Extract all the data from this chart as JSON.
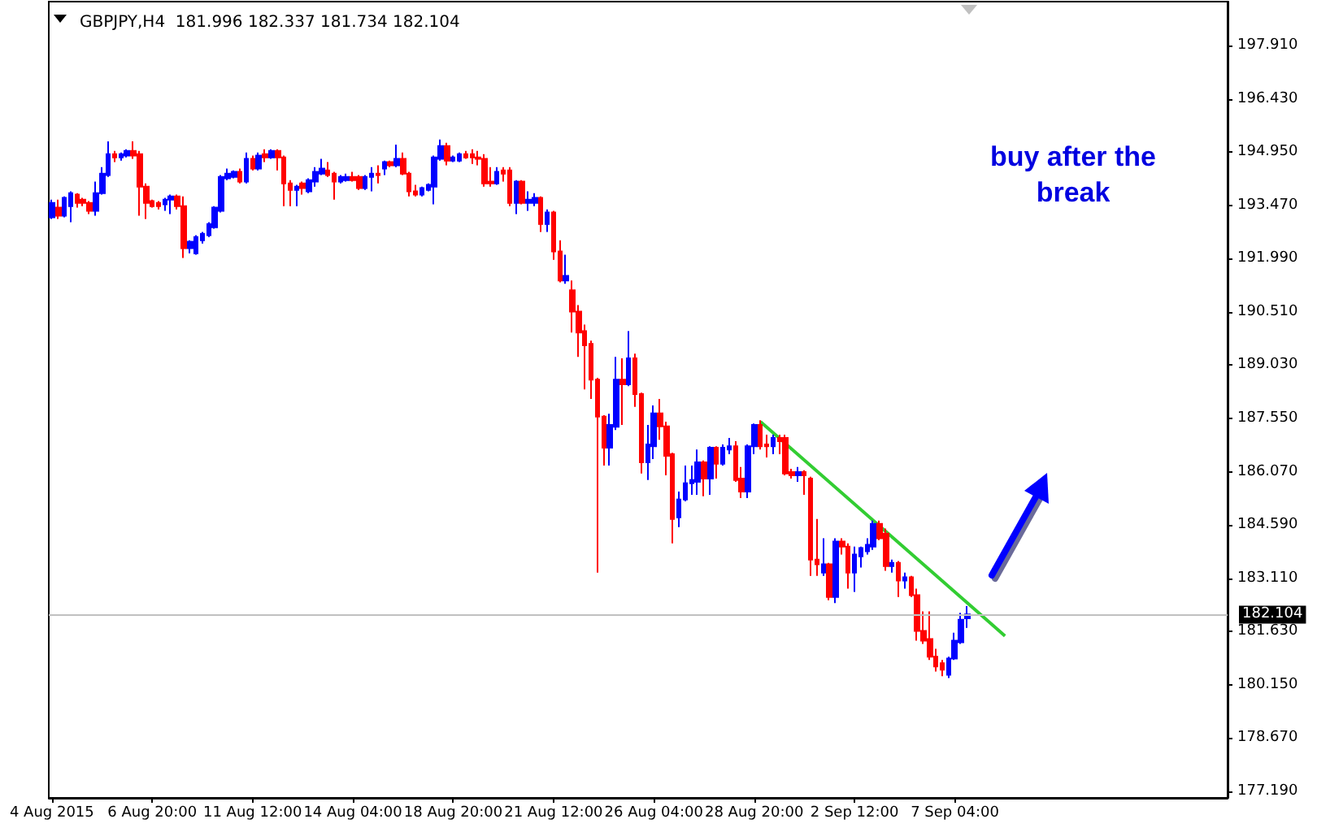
{
  "chart_data": {
    "type": "candlestick",
    "title": "GBPJPY,H4  181.996 182.337 181.734 182.104",
    "annotations": [
      "buy after the break"
    ],
    "categories": [
      "4 Aug 2015",
      null,
      null,
      null,
      null,
      null,
      null,
      null,
      null,
      null,
      null,
      null,
      null,
      null,
      null,
      null,
      "6 Aug 20:00",
      null,
      null,
      null,
      null,
      null,
      null,
      null,
      null,
      null,
      null,
      null,
      null,
      null,
      null,
      null,
      "11 Aug 12:00",
      null,
      null,
      null,
      null,
      null,
      null,
      null,
      null,
      null,
      null,
      null,
      null,
      null,
      null,
      null,
      "14 Aug 04:00",
      null,
      null,
      null,
      null,
      null,
      null,
      null,
      null,
      null,
      null,
      null,
      null,
      null,
      null,
      null,
      "18 Aug 20:00",
      null,
      null,
      null,
      null,
      null,
      null,
      null,
      null,
      null,
      null,
      null,
      null,
      null,
      null,
      null,
      "21 Aug 12:00",
      null,
      null,
      null,
      null,
      null,
      null,
      null,
      null,
      null,
      null,
      null,
      null,
      null,
      null,
      null,
      "26 Aug 04:00",
      null,
      null,
      null,
      null,
      null,
      null,
      null,
      null,
      null,
      null,
      null,
      null,
      null,
      null,
      null,
      "28 Aug 20:00",
      null,
      null,
      null,
      null,
      null,
      null,
      null,
      null,
      null,
      null,
      null,
      null,
      null,
      null,
      null,
      "2 Sep 12:00",
      null,
      null,
      null,
      null,
      null,
      null,
      null,
      null,
      null,
      null,
      null,
      null,
      null,
      null,
      null,
      "7 Sep 04:00",
      null,
      null,
      null,
      null,
      null,
      null,
      null,
      null,
      null,
      null,
      null,
      null,
      null,
      null,
      null,
      null,
      null,
      null,
      null,
      null,
      null,
      null,
      null,
      null,
      null,
      null,
      null,
      null,
      null,
      null,
      null,
      null,
      null,
      null,
      null,
      null,
      null,
      null,
      null,
      null,
      null,
      null,
      null
    ],
    "ylim": [
      177.01,
      199.13
    ],
    "yticks": [
      {
        "value": 177.19,
        "label": "177.190"
      },
      {
        "value": 178.67,
        "label": "178.670"
      },
      {
        "value": 180.15,
        "label": "180.150"
      },
      {
        "value": 181.63,
        "label": "181.630"
      },
      {
        "value": 183.11,
        "label": "183.110"
      },
      {
        "value": 184.59,
        "label": "184.590"
      },
      {
        "value": 186.07,
        "label": "186.070"
      },
      {
        "value": 187.55,
        "label": "187.550"
      },
      {
        "value": 189.03,
        "label": "189.030"
      },
      {
        "value": 190.51,
        "label": "190.510"
      },
      {
        "value": 191.99,
        "label": "191.990"
      },
      {
        "value": 193.47,
        "label": "193.470"
      },
      {
        "value": 194.95,
        "label": "194.950"
      },
      {
        "value": 196.43,
        "label": "196.430"
      },
      {
        "value": 197.91,
        "label": "197.910"
      }
    ],
    "ohlc": [
      [
        193.14,
        193.63,
        193.09,
        193.54
      ],
      [
        193.41,
        193.63,
        193.09,
        193.18
      ],
      [
        193.18,
        193.72,
        193.14,
        193.68
      ],
      [
        193.45,
        193.86,
        193.0,
        193.81
      ],
      [
        193.77,
        193.81,
        193.41,
        193.54
      ],
      [
        193.63,
        193.68,
        193.45,
        193.54
      ],
      [
        193.54,
        193.59,
        193.23,
        193.32
      ],
      [
        193.32,
        194.13,
        193.18,
        193.81
      ],
      [
        193.81,
        194.53,
        193.77,
        194.35
      ],
      [
        194.31,
        195.25,
        194.26,
        194.89
      ],
      [
        194.89,
        194.98,
        194.67,
        194.8
      ],
      [
        194.8,
        194.94,
        194.71,
        194.89
      ],
      [
        194.85,
        195.03,
        194.8,
        194.98
      ],
      [
        194.98,
        195.25,
        194.76,
        194.85
      ],
      [
        194.89,
        194.98,
        193.18,
        193.99
      ],
      [
        193.99,
        194.08,
        193.09,
        193.54
      ],
      [
        193.59,
        193.63,
        193.41,
        193.45
      ],
      [
        193.54,
        193.59,
        193.36,
        193.45
      ],
      [
        193.5,
        193.68,
        193.32,
        193.63
      ],
      [
        193.63,
        193.77,
        193.23,
        193.72
      ],
      [
        193.72,
        193.77,
        193.36,
        193.45
      ],
      [
        193.45,
        193.72,
        192.01,
        192.28
      ],
      [
        192.28,
        192.5,
        192.14,
        192.46
      ],
      [
        192.14,
        192.64,
        192.1,
        192.59
      ],
      [
        192.5,
        192.73,
        192.41,
        192.68
      ],
      [
        192.64,
        193.0,
        192.59,
        192.95
      ],
      [
        192.86,
        193.45,
        192.82,
        193.41
      ],
      [
        193.32,
        194.31,
        193.27,
        194.26
      ],
      [
        194.22,
        194.49,
        194.17,
        194.35
      ],
      [
        194.26,
        194.44,
        194.22,
        194.4
      ],
      [
        194.4,
        194.49,
        194.08,
        194.13
      ],
      [
        194.13,
        194.94,
        194.08,
        194.76
      ],
      [
        194.76,
        194.85,
        194.44,
        194.49
      ],
      [
        194.49,
        194.94,
        194.44,
        194.85
      ],
      [
        194.89,
        195.03,
        194.67,
        194.8
      ],
      [
        194.8,
        195.03,
        194.76,
        194.98
      ],
      [
        194.98,
        195.03,
        194.44,
        194.8
      ],
      [
        194.8,
        194.85,
        193.45,
        194.08
      ],
      [
        194.08,
        194.17,
        193.45,
        193.9
      ],
      [
        193.9,
        194.04,
        193.45,
        193.99
      ],
      [
        194.08,
        194.13,
        193.77,
        193.95
      ],
      [
        193.86,
        194.22,
        193.81,
        194.17
      ],
      [
        194.13,
        194.53,
        193.99,
        194.4
      ],
      [
        194.35,
        194.76,
        194.31,
        194.49
      ],
      [
        194.44,
        194.67,
        194.26,
        194.31
      ],
      [
        194.35,
        194.4,
        193.63,
        194.13
      ],
      [
        194.13,
        194.31,
        194.08,
        194.26
      ],
      [
        194.17,
        194.35,
        194.13,
        194.26
      ],
      [
        194.26,
        194.4,
        194.13,
        194.17
      ],
      [
        194.26,
        194.31,
        193.9,
        193.95
      ],
      [
        193.95,
        194.31,
        193.9,
        194.26
      ],
      [
        194.26,
        194.53,
        193.86,
        194.35
      ],
      [
        194.35,
        194.58,
        194.08,
        194.31
      ],
      [
        194.49,
        194.71,
        194.31,
        194.67
      ],
      [
        194.67,
        194.71,
        194.53,
        194.58
      ],
      [
        194.58,
        195.16,
        194.53,
        194.76
      ],
      [
        194.76,
        194.94,
        194.31,
        194.35
      ],
      [
        194.35,
        194.4,
        193.72,
        193.86
      ],
      [
        193.86,
        194.04,
        193.72,
        193.77
      ],
      [
        193.77,
        193.99,
        193.72,
        193.95
      ],
      [
        193.9,
        194.08,
        193.86,
        194.04
      ],
      [
        193.99,
        194.85,
        193.5,
        194.8
      ],
      [
        194.76,
        195.3,
        194.71,
        195.12
      ],
      [
        195.12,
        195.21,
        194.58,
        194.71
      ],
      [
        194.71,
        194.85,
        194.67,
        194.8
      ],
      [
        194.71,
        194.94,
        194.67,
        194.89
      ],
      [
        194.89,
        194.98,
        194.76,
        194.8
      ],
      [
        194.89,
        195.03,
        194.62,
        194.8
      ],
      [
        194.8,
        194.98,
        194.58,
        194.76
      ],
      [
        194.76,
        194.89,
        193.99,
        194.08
      ],
      [
        194.13,
        194.53,
        193.99,
        194.08
      ],
      [
        194.08,
        194.53,
        194.04,
        194.4
      ],
      [
        194.44,
        194.53,
        194.13,
        194.35
      ],
      [
        194.44,
        194.53,
        193.45,
        193.54
      ],
      [
        193.54,
        194.17,
        193.23,
        194.13
      ],
      [
        194.13,
        194.17,
        193.5,
        193.54
      ],
      [
        193.54,
        193.86,
        193.32,
        193.63
      ],
      [
        193.54,
        193.81,
        193.45,
        193.68
      ],
      [
        193.68,
        193.72,
        192.73,
        192.95
      ],
      [
        192.95,
        193.36,
        192.73,
        193.27
      ],
      [
        193.27,
        193.32,
        191.96,
        192.19
      ],
      [
        192.19,
        192.5,
        191.33,
        191.38
      ],
      [
        191.38,
        192.1,
        191.29,
        191.51
      ],
      [
        191.11,
        191.38,
        189.94,
        190.52
      ],
      [
        190.52,
        190.7,
        189.26,
        189.94
      ],
      [
        189.98,
        190.16,
        188.36,
        189.58
      ],
      [
        189.62,
        189.71,
        188.09,
        188.63
      ],
      [
        188.63,
        188.68,
        183.27,
        187.6
      ],
      [
        187.6,
        187.64,
        186.24,
        186.74
      ],
      [
        186.74,
        187.68,
        186.24,
        187.37
      ],
      [
        187.32,
        189.26,
        187.23,
        188.63
      ],
      [
        188.63,
        189.22,
        187.37,
        188.5
      ],
      [
        188.5,
        189.98,
        188.45,
        189.22
      ],
      [
        189.22,
        189.35,
        187.87,
        188.23
      ],
      [
        188.23,
        188.27,
        186.02,
        186.33
      ],
      [
        186.33,
        187.37,
        185.84,
        186.83
      ],
      [
        186.78,
        187.91,
        186.42,
        187.69
      ],
      [
        187.69,
        188.09,
        186.96,
        187.33
      ],
      [
        187.33,
        187.46,
        185.97,
        186.51
      ],
      [
        186.56,
        186.6,
        184.08,
        184.76
      ],
      [
        184.8,
        185.52,
        184.53,
        185.3
      ],
      [
        185.3,
        186.24,
        185.25,
        185.75
      ],
      [
        185.75,
        186.24,
        185.43,
        185.84
      ],
      [
        185.79,
        186.69,
        185.43,
        186.33
      ],
      [
        186.33,
        186.38,
        185.39,
        185.88
      ],
      [
        185.88,
        186.78,
        185.43,
        186.74
      ],
      [
        186.74,
        186.78,
        185.88,
        186.29
      ],
      [
        186.29,
        186.83,
        186.24,
        186.74
      ],
      [
        186.69,
        187.01,
        186.56,
        186.78
      ],
      [
        186.78,
        186.92,
        185.79,
        185.84
      ],
      [
        185.88,
        186.2,
        185.34,
        185.52
      ],
      [
        185.52,
        186.83,
        185.34,
        186.78
      ],
      [
        186.78,
        187.41,
        186.56,
        187.37
      ],
      [
        187.37,
        187.5,
        186.69,
        186.78
      ],
      [
        186.83,
        187.1,
        186.47,
        186.78
      ],
      [
        186.78,
        187.1,
        186.56,
        187.01
      ],
      [
        187.01,
        187.1,
        186.56,
        186.92
      ],
      [
        187.01,
        187.1,
        185.97,
        186.02
      ],
      [
        186.06,
        186.15,
        185.88,
        185.97
      ],
      [
        185.97,
        186.2,
        185.79,
        186.06
      ],
      [
        186.06,
        186.11,
        185.43,
        185.97
      ],
      [
        185.88,
        185.93,
        183.18,
        183.63
      ],
      [
        183.63,
        184.76,
        183.18,
        183.5
      ],
      [
        183.27,
        184.22,
        183.18,
        183.5
      ],
      [
        183.5,
        183.54,
        182.5,
        182.59
      ],
      [
        182.59,
        184.22,
        182.42,
        184.13
      ],
      [
        184.13,
        184.22,
        183.77,
        183.99
      ],
      [
        183.99,
        184.08,
        182.82,
        183.27
      ],
      [
        183.27,
        183.99,
        182.73,
        183.77
      ],
      [
        183.72,
        183.99,
        183.41,
        183.95
      ],
      [
        183.86,
        184.22,
        183.77,
        184.04
      ],
      [
        183.99,
        184.71,
        183.9,
        184.62
      ],
      [
        184.62,
        184.71,
        184.17,
        184.22
      ],
      [
        184.35,
        184.49,
        183.32,
        183.45
      ],
      [
        183.45,
        183.63,
        183.27,
        183.54
      ],
      [
        183.54,
        183.59,
        182.59,
        183.05
      ],
      [
        183.05,
        183.27,
        182.82,
        183.14
      ],
      [
        183.14,
        183.18,
        182.59,
        182.64
      ],
      [
        182.64,
        182.82,
        181.38,
        181.65
      ],
      [
        181.65,
        182.19,
        181.29,
        181.38
      ],
      [
        181.42,
        182.19,
        180.84,
        180.93
      ],
      [
        180.93,
        181.15,
        180.52,
        180.66
      ],
      [
        180.75,
        180.84,
        180.39,
        180.57
      ],
      [
        180.43,
        180.93,
        180.34,
        180.88
      ],
      [
        180.88,
        181.6,
        180.84,
        181.38
      ],
      [
        181.33,
        182.15,
        181.29,
        181.96
      ],
      [
        181.996,
        182.337,
        181.734,
        182.104
      ],
      null,
      null,
      null,
      null,
      null,
      null,
      null,
      null,
      null,
      null,
      null,
      null,
      null,
      null,
      null,
      null,
      null,
      null,
      null,
      null,
      null,
      null,
      null,
      null,
      null,
      null,
      null,
      null,
      null,
      null,
      null,
      null,
      null,
      null,
      null,
      null,
      null,
      null,
      null,
      null,
      null
    ],
    "colors": [
      "#0000ff",
      "#ff0000",
      "#0000ff",
      "#0000ff",
      "#ff0000",
      "#ff0000",
      "#ff0000",
      "#0000ff",
      "#0000ff",
      "#0000ff",
      "#ff0000",
      "#0000ff",
      "#0000ff",
      "#ff0000",
      "#ff0000",
      "#ff0000",
      "#ff0000",
      "#ff0000",
      "#0000ff",
      "#0000ff",
      "#ff0000",
      "#ff0000",
      "#0000ff",
      "#0000ff",
      "#0000ff",
      "#0000ff",
      "#0000ff",
      "#0000ff",
      "#0000ff",
      "#0000ff",
      "#ff0000",
      "#0000ff",
      "#ff0000",
      "#0000ff",
      "#ff0000",
      "#0000ff",
      "#ff0000",
      "#ff0000",
      "#ff0000",
      "#0000ff",
      "#ff0000",
      "#0000ff",
      "#0000ff",
      "#0000ff",
      "#ff0000",
      "#ff0000",
      "#0000ff",
      "#0000ff",
      "#ff0000",
      "#ff0000",
      "#0000ff",
      "#0000ff",
      "#ff0000",
      "#0000ff",
      "#ff0000",
      "#0000ff",
      "#ff0000",
      "#ff0000",
      "#ff0000",
      "#0000ff",
      "#0000ff",
      "#0000ff",
      "#0000ff",
      "#ff0000",
      "#0000ff",
      "#0000ff",
      "#ff0000",
      "#ff0000",
      "#ff0000",
      "#ff0000",
      "#ff0000",
      "#0000ff",
      "#ff0000",
      "#ff0000",
      "#0000ff",
      "#ff0000",
      "#0000ff",
      "#0000ff",
      "#ff0000",
      "#0000ff",
      "#ff0000",
      "#ff0000",
      "#0000ff",
      "#ff0000",
      "#ff0000",
      "#ff0000",
      "#ff0000",
      "#ff0000",
      "#ff0000",
      "#0000ff",
      "#0000ff",
      "#ff0000",
      "#0000ff",
      "#ff0000",
      "#ff0000",
      "#0000ff",
      "#0000ff",
      "#ff0000",
      "#ff0000",
      "#ff0000",
      "#0000ff",
      "#0000ff",
      "#0000ff",
      "#0000ff",
      "#ff0000",
      "#0000ff",
      "#ff0000",
      "#0000ff",
      "#0000ff",
      "#ff0000",
      "#ff0000",
      "#0000ff",
      "#0000ff",
      "#ff0000",
      "#ff0000",
      "#0000ff",
      "#ff0000",
      "#ff0000",
      "#ff0000",
      "#0000ff",
      "#ff0000",
      "#ff0000",
      "#ff0000",
      "#0000ff",
      "#ff0000",
      "#0000ff",
      "#ff0000",
      "#ff0000",
      "#0000ff",
      "#0000ff",
      "#0000ff",
      "#0000ff",
      "#ff0000",
      "#ff0000",
      "#0000ff",
      "#ff0000",
      "#0000ff",
      "#ff0000",
      "#ff0000",
      "#ff0000",
      "#ff0000",
      "#ff0000",
      "#ff0000",
      "#0000ff",
      "#0000ff",
      "#0000ff",
      "#0000ff",
      null,
      null,
      null,
      null,
      null,
      null,
      null,
      null,
      null,
      null,
      null,
      null,
      null,
      null,
      null,
      null,
      null,
      null,
      null,
      null,
      null,
      null,
      null,
      null,
      null,
      null,
      null,
      null,
      null,
      null,
      null,
      null,
      null,
      null,
      null,
      null,
      null,
      null,
      null,
      null,
      null
    ],
    "series": [
      {
        "type": "line",
        "color": "#32cd32",
        "values": [
          null,
          null,
          null,
          null,
          null,
          null,
          null,
          null,
          null,
          null,
          null,
          null,
          null,
          null,
          null,
          null,
          null,
          null,
          null,
          null,
          null,
          null,
          null,
          null,
          null,
          null,
          null,
          null,
          null,
          null,
          null,
          null,
          null,
          null,
          null,
          null,
          null,
          null,
          null,
          null,
          null,
          null,
          null,
          null,
          null,
          null,
          null,
          null,
          null,
          null,
          null,
          null,
          null,
          null,
          null,
          null,
          null,
          null,
          null,
          null,
          null,
          null,
          null,
          null,
          null,
          null,
          null,
          null,
          null,
          null,
          null,
          null,
          null,
          null,
          null,
          null,
          null,
          null,
          null,
          null,
          null,
          null,
          null,
          null,
          null,
          null,
          null,
          null,
          null,
          null,
          null,
          null,
          null,
          null,
          null,
          null,
          null,
          null,
          null,
          null,
          null,
          null,
          null,
          null,
          null,
          null,
          null,
          null,
          null,
          null,
          null,
          null,
          null,
          187.46,
          null,
          null,
          null,
          null,
          null,
          null,
          null,
          null,
          null,
          null,
          null,
          null,
          null,
          null,
          null,
          null,
          null,
          null,
          null,
          null,
          null,
          null,
          null,
          null,
          null,
          null,
          null,
          null,
          null,
          null,
          null,
          null,
          null,
          null,
          null,
          null,
          null,
          null,
          181.51,
          null,
          null,
          null,
          null,
          null,
          null,
          null,
          null,
          null,
          null,
          null,
          null,
          null,
          null,
          null,
          null,
          null,
          null,
          null,
          null,
          null,
          null,
          null,
          null,
          null,
          null,
          null,
          null,
          null,
          null,
          null,
          null,
          null,
          null,
          null
        ]
      }
    ],
    "ref_lines": [
      {
        "axis": "y",
        "value": 182.104,
        "label": "182.104",
        "color": "#c0c0c0",
        "line_style": "solid"
      }
    ]
  }
}
